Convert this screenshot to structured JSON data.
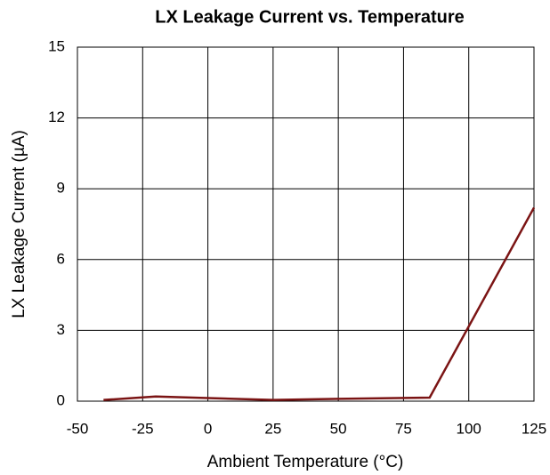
{
  "chart_data": {
    "type": "line",
    "title": "LX Leakage Current vs. Temperature",
    "x_label": "Ambient Temperature (°C)",
    "y_label": "LX Leakage Current (µA)",
    "x": [
      -40,
      -20,
      0,
      25,
      50,
      85,
      125
    ],
    "series": [
      {
        "name": "LX Leakage",
        "color": "#7b1414",
        "values": [
          0.05,
          0.2,
          0.13,
          0.05,
          0.1,
          0.15,
          8.2
        ]
      }
    ],
    "xlim": [
      -50,
      125
    ],
    "xticks": [
      -50,
      -25,
      0,
      25,
      50,
      75,
      100,
      125
    ],
    "ylim": [
      0,
      15
    ],
    "yticks": [
      0,
      3,
      6,
      9,
      12,
      15
    ],
    "grid": true
  }
}
